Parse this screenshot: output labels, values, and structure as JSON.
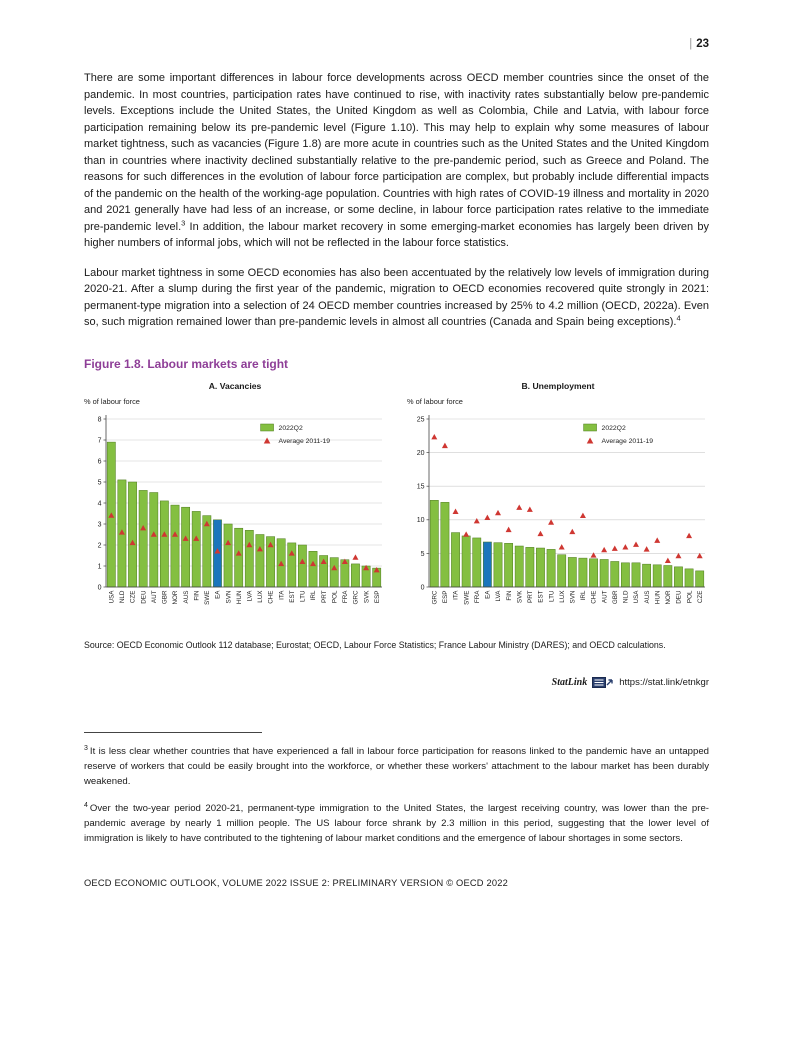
{
  "page": {
    "number_separator": "|",
    "number": "23",
    "footer": "OECD ECONOMIC OUTLOOK, VOLUME 2022 ISSUE 2: PRELIMINARY VERSION © OECD 2022"
  },
  "paragraphs": {
    "p1_before": "There are some important differences in labour force developments across OECD member countries since the onset of the pandemic. In most countries, participation rates have continued to rise, with inactivity rates substantially below pre-pandemic levels. Exceptions include the United States, the United Kingdom as well as Colombia, Chile and Latvia, with labour force participation remaining below its pre-pandemic level (Figure 1.10). This may help to explain why some measures of labour market tightness, such as vacancies (Figure 1.8) are more acute in countries such as the United States and the United Kingdom than in countries where inactivity declined substantially relative to the pre-pandemic period, such as Greece and Poland. The reasons for such differences in the evolution of labour force participation are complex, but probably include differential impacts of the pandemic on the health of the working-age population. Countries with high rates of COVID-19 illness and mortality in 2020 and 2021 generally have had less of an increase, or some decline, in labour force participation rates relative to the immediate pre-pandemic level.",
    "p1_sup": "3",
    "p1_after": " In addition, the labour market recovery in some emerging-market economies has largely been driven by higher numbers of informal jobs, which will not be reflected in the labour force statistics.",
    "p2_before": "Labour market tightness in some OECD economies has also been accentuated by the relatively low levels of immigration during 2020-21. After a slump during the first year of the pandemic, migration to OECD economies recovered quite strongly in 2021: permanent-type migration into a selection of 24 OECD member countries increased by 25% to 4.2 million (OECD, 2022a). Even so, such migration remained lower than pre-pandemic levels in almost all countries (Canada and Spain being exceptions).",
    "p2_sup": "4"
  },
  "figure": {
    "title": "Figure 1.8. Labour markets are tight",
    "source": "Source: OECD Economic Outlook 112 database; Eurostat; OECD, Labour Force Statistics; France Labour Ministry (DARES); and OECD calculations.",
    "statlink_label": "StatLink",
    "statlink_url": "https://stat.link/etnkgr",
    "colors": {
      "title_accent": "#8e3e97",
      "bar": "#84bf41",
      "bar_border": "#4e7a1e",
      "highlight_bar": "#1b75bc",
      "marker": "#cf3732",
      "gridline": "#cccccc"
    }
  },
  "chart_data": [
    {
      "type": "bar",
      "title": "A. Vacancies",
      "ylabel": "% of labour force",
      "ylim": [
        0,
        8
      ],
      "ytick": 1,
      "grid": true,
      "legend_position": "upper-right",
      "legend": [
        "2022Q2",
        "Average 2011-19"
      ],
      "highlight": "EA",
      "categories": [
        "USA",
        "NLD",
        "CZE",
        "DEU",
        "AUT",
        "GBR",
        "NOR",
        "AUS",
        "FIN",
        "SWE",
        "EA",
        "SVN",
        "HUN",
        "LVA",
        "LUX",
        "CHE",
        "ITA",
        "EST",
        "LTU",
        "IRL",
        "PRT",
        "POL",
        "FRA",
        "GRC",
        "SVK",
        "ESP"
      ],
      "series": [
        {
          "name": "2022Q2",
          "values": [
            6.9,
            5.1,
            5.0,
            4.6,
            4.5,
            4.1,
            3.9,
            3.8,
            3.6,
            3.4,
            3.2,
            3.0,
            2.8,
            2.7,
            2.5,
            2.4,
            2.3,
            2.1,
            2.0,
            1.7,
            1.5,
            1.4,
            1.3,
            1.1,
            1.0,
            0.9
          ]
        },
        {
          "name": "Average 2011-19",
          "values": [
            3.4,
            2.6,
            2.1,
            2.8,
            2.5,
            2.5,
            2.5,
            2.3,
            2.3,
            3.0,
            1.7,
            2.1,
            1.6,
            2.0,
            1.8,
            2.0,
            1.1,
            1.6,
            1.2,
            1.1,
            1.2,
            0.9,
            1.2,
            1.4,
            0.9,
            0.8
          ]
        }
      ]
    },
    {
      "type": "bar",
      "title": "B. Unemployment",
      "ylabel": "% of labour force",
      "ylim": [
        0,
        25
      ],
      "ytick": 5,
      "grid": true,
      "legend_position": "upper-right",
      "legend": [
        "2022Q2",
        "Average 2011-19"
      ],
      "highlight": "EA",
      "categories": [
        "GRC",
        "ESP",
        "ITA",
        "SWE",
        "FRA",
        "EA",
        "LVA",
        "FIN",
        "SVK",
        "PRT",
        "EST",
        "LTU",
        "LUX",
        "SVN",
        "IRL",
        "CHE",
        "AUT",
        "GBR",
        "NLD",
        "USA",
        "AUS",
        "HUN",
        "NOR",
        "DEU",
        "POL",
        "CZE"
      ],
      "series": [
        {
          "name": "2022Q2",
          "values": [
            12.9,
            12.6,
            8.1,
            7.6,
            7.3,
            6.7,
            6.6,
            6.5,
            6.1,
            5.9,
            5.8,
            5.6,
            4.8,
            4.4,
            4.3,
            4.2,
            4.1,
            3.8,
            3.6,
            3.6,
            3.4,
            3.3,
            3.2,
            3.0,
            2.7,
            2.4
          ]
        },
        {
          "name": "Average 2011-19",
          "values": [
            22.3,
            21.0,
            11.2,
            7.8,
            9.8,
            10.3,
            11.0,
            8.5,
            11.8,
            11.5,
            7.9,
            9.6,
            5.9,
            8.2,
            10.6,
            4.7,
            5.5,
            5.7,
            5.9,
            6.3,
            5.6,
            6.9,
            3.9,
            4.6,
            7.6,
            4.6
          ]
        }
      ]
    }
  ],
  "footnotes": [
    {
      "marker": "3",
      "text": "It is less clear whether countries that have experienced a fall in labour force participation for reasons linked to the pandemic have an untapped reserve of workers that could be easily brought into the workforce, or whether these workers' attachment to the labour market has been durably weakened."
    },
    {
      "marker": "4",
      "text": "Over the two-year period 2020-21, permanent-type immigration to the United States, the largest receiving country, was lower than the pre-pandemic average by nearly 1 million people. The US labour force shrank by 2.3 million in this period, suggesting that the lower level of immigration is likely to have contributed to the tightening of labour market conditions and the emergence of labour shortages in some sectors."
    }
  ]
}
